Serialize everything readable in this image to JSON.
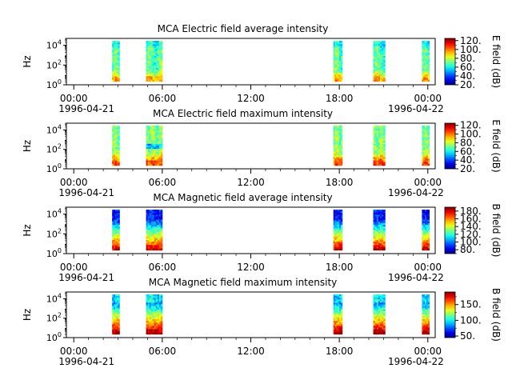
{
  "chart_data": [
    {
      "type": "heatmap",
      "title": "MCA  Electric field average intensity",
      "ylabel": "Hz",
      "colorbar_label": "E field (dB)",
      "colorbar_ticks": [
        "20.",
        "40.",
        "60.",
        "80.",
        "100.",
        "120."
      ],
      "colorbar_range": [
        20,
        125
      ],
      "y_ticks": [
        {
          "exp": "0"
        },
        {
          "exp": "2"
        },
        {
          "exp": "4"
        }
      ],
      "x_ticks": [
        "00:00",
        "06:00",
        "12:00",
        "18:00",
        "00:00"
      ],
      "x_dates": [
        "1996-04-21",
        "1996-04-22"
      ],
      "xlim_hours": [
        -0.5,
        24.5
      ],
      "ylim_log10": [
        0,
        4.7
      ],
      "intervals_hours": [
        [
          2.6,
          3.1
        ],
        [
          4.9,
          6.0
        ],
        [
          17.6,
          18.2
        ],
        [
          20.3,
          21.1
        ],
        [
          23.6,
          24.1
        ]
      ],
      "pattern": "electric_avg"
    },
    {
      "type": "heatmap",
      "title": "MCA  Electric field maximum intensity",
      "ylabel": "Hz",
      "colorbar_label": "E field (dB)",
      "colorbar_ticks": [
        "20.",
        "40.",
        "60.",
        "80.",
        "100.",
        "120."
      ],
      "colorbar_range": [
        20,
        125
      ],
      "y_ticks": [
        {
          "exp": "0"
        },
        {
          "exp": "2"
        },
        {
          "exp": "4"
        }
      ],
      "x_ticks": [
        "00:00",
        "06:00",
        "12:00",
        "18:00",
        "00:00"
      ],
      "x_dates": [
        "1996-04-21",
        "1996-04-22"
      ],
      "xlim_hours": [
        -0.5,
        24.5
      ],
      "ylim_log10": [
        0,
        4.7
      ],
      "intervals_hours": [
        [
          2.6,
          3.1
        ],
        [
          4.9,
          6.0
        ],
        [
          17.6,
          18.2
        ],
        [
          20.3,
          21.1
        ],
        [
          23.6,
          24.1
        ]
      ],
      "pattern": "electric_max"
    },
    {
      "type": "heatmap",
      "title": "MCA  Magnetic field average intensity",
      "ylabel": "Hz",
      "colorbar_label": "B field (dB)",
      "colorbar_ticks": [
        "80.",
        "100.",
        "120.",
        "140.",
        "160.",
        "180."
      ],
      "colorbar_range": [
        70,
        190
      ],
      "y_ticks": [
        {
          "exp": "0"
        },
        {
          "exp": "2"
        },
        {
          "exp": "4"
        }
      ],
      "x_ticks": [
        "00:00",
        "06:00",
        "12:00",
        "18:00",
        "00:00"
      ],
      "x_dates": [
        "1996-04-21",
        "1996-04-22"
      ],
      "xlim_hours": [
        -0.5,
        24.5
      ],
      "ylim_log10": [
        0,
        4.7
      ],
      "intervals_hours": [
        [
          2.6,
          3.1
        ],
        [
          4.9,
          6.0
        ],
        [
          17.6,
          18.2
        ],
        [
          20.3,
          21.1
        ],
        [
          23.6,
          24.1
        ]
      ],
      "pattern": "magnetic_avg"
    },
    {
      "type": "heatmap",
      "title": "MCA  Magnetic field maximum intensity",
      "ylabel": "Hz",
      "colorbar_label": "B field (dB)",
      "colorbar_ticks": [
        "50.",
        "100.",
        "150."
      ],
      "colorbar_range": [
        45,
        190
      ],
      "y_ticks": [
        {
          "exp": "0"
        },
        {
          "exp": "2"
        },
        {
          "exp": "4"
        }
      ],
      "x_ticks": [
        "00:00",
        "06:00",
        "12:00",
        "18:00",
        "00:00"
      ],
      "x_dates": [
        "1996-04-21",
        "1996-04-22"
      ],
      "xlim_hours": [
        -0.5,
        24.5
      ],
      "ylim_log10": [
        0,
        4.7
      ],
      "intervals_hours": [
        [
          2.6,
          3.1
        ],
        [
          4.9,
          6.0
        ],
        [
          17.6,
          18.2
        ],
        [
          20.3,
          21.1
        ],
        [
          23.6,
          24.1
        ]
      ],
      "pattern": "magnetic_max"
    }
  ]
}
